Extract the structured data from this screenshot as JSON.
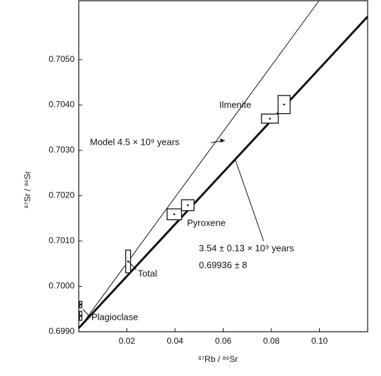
{
  "chart_data": {
    "type": "isochron",
    "xlabel": "⁸⁷Rb / ⁸⁶Sr",
    "ylabel": "⁸⁷Sr / ⁸⁶Sr",
    "xlim": [
      0,
      0.12
    ],
    "ylim": [
      0.699,
      0.7063
    ],
    "xticks": [
      0.02,
      0.04,
      0.06,
      0.08,
      {
        "value": 0.1,
        "label": "0.10"
      }
    ],
    "yticks": [
      {
        "value": 0.699,
        "label": "0.6990"
      },
      {
        "value": 0.7,
        "label": "0.7000"
      },
      {
        "value": 0.701,
        "label": "0.7010"
      },
      {
        "value": 0.702,
        "label": "0.7020"
      },
      {
        "value": 0.703,
        "label": "0.7030"
      },
      {
        "value": 0.704,
        "label": "0.7040"
      },
      {
        "value": 0.705,
        "label": "0.7050"
      }
    ],
    "lines": [
      {
        "name": "Model 4.5 × 10⁹ years",
        "x": [
          0.0005,
          0.0998
        ],
        "values": [
          0.6991,
          0.7063
        ],
        "width": 1
      },
      {
        "name": "3.54 ± 0.13 × 10⁹ years",
        "x": [
          0,
          0.12
        ],
        "values": [
          0.69908,
          0.70595
        ],
        "width": 3
      }
    ],
    "boxes": {
      "x": [
        0.0008,
        0.0008,
        0.0205,
        0.0397,
        0.0453,
        0.0794,
        0.0853
      ],
      "values": [
        0.6996,
        0.69935,
        0.70055,
        0.70159,
        0.70179,
        0.7037,
        0.70401
      ],
      "xerr": [
        0.0005,
        0.0005,
        0.001,
        0.003,
        0.0026,
        0.0035,
        0.0025
      ],
      "yerr": [
        7e-05,
        0.0001,
        0.00025,
        0.00012,
        0.00012,
        0.0001,
        0.0002
      ]
    },
    "annotations": [
      "Ilmenite",
      "Model 4.5 × 10⁹ years",
      "Pyroxene",
      "3.54 ± 0.13 × 10⁹ years",
      "0.69936 ± 8",
      "Total",
      "Plagioclase"
    ]
  }
}
